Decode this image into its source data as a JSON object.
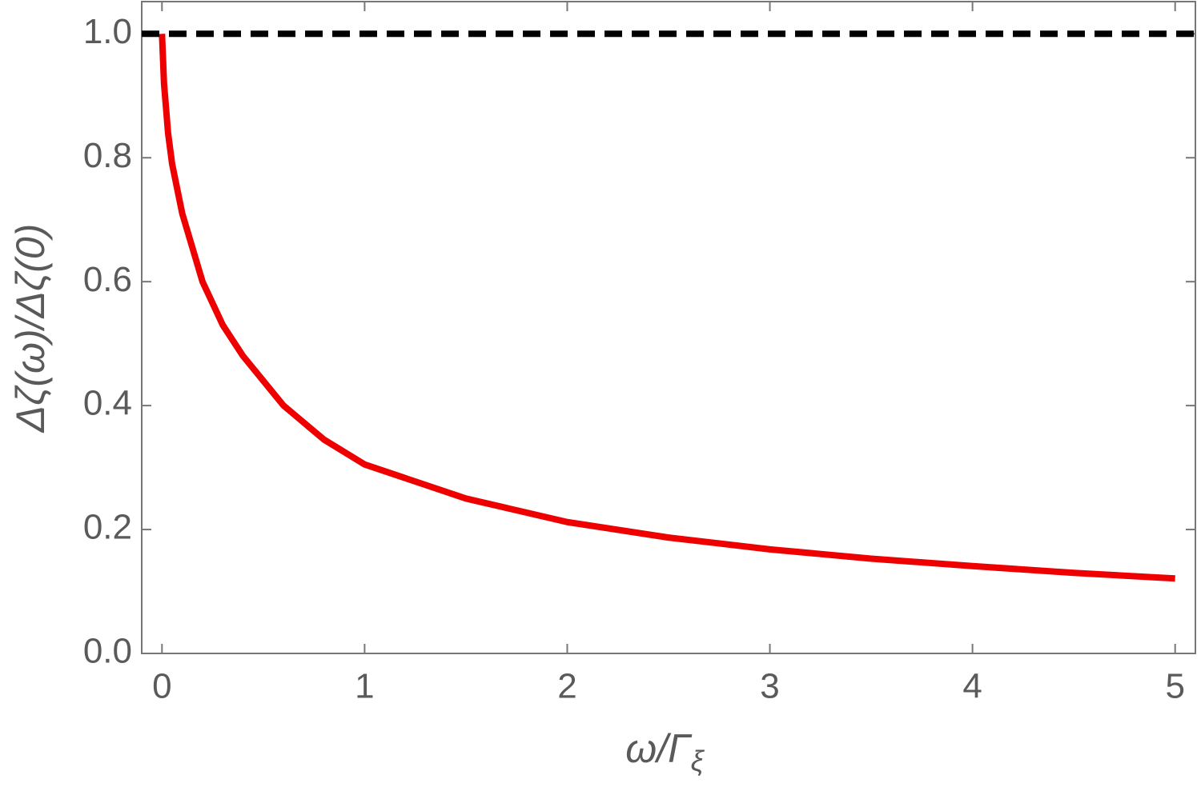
{
  "chart_data": {
    "type": "line",
    "x_label": "ω/Γ",
    "x_label_subscript": "ξ",
    "y_label": "Δζ(ω)/Δζ(0)",
    "series": [
      {
        "color": "#ee0000",
        "dashed": false,
        "x": [
          0,
          0.01,
          0.03,
          0.05,
          0.1,
          0.2,
          0.3,
          0.4,
          0.6,
          0.8,
          1,
          1.5,
          2,
          2.5,
          3,
          3.5,
          4,
          4.5,
          5
        ],
        "values": [
          1.0,
          0.92,
          0.84,
          0.79,
          0.71,
          0.6,
          0.53,
          0.48,
          0.4,
          0.345,
          0.305,
          0.25,
          0.212,
          0.187,
          0.168,
          0.153,
          0.141,
          0.13,
          0.121
        ]
      },
      {
        "color": "#000000",
        "dashed": true,
        "x": [
          -0.1,
          5.1
        ],
        "values": [
          1.0,
          1.0
        ]
      }
    ],
    "xlim": [
      -0.1,
      5.1
    ],
    "ylim": [
      0,
      1.052
    ],
    "xticks": [
      0,
      1,
      2,
      3,
      4,
      5
    ],
    "yticks": [
      {
        "value": 0,
        "label": "0.0"
      },
      0.2,
      0.4,
      0.6,
      0.8,
      {
        "value": 1,
        "label": "1.0"
      }
    ]
  }
}
